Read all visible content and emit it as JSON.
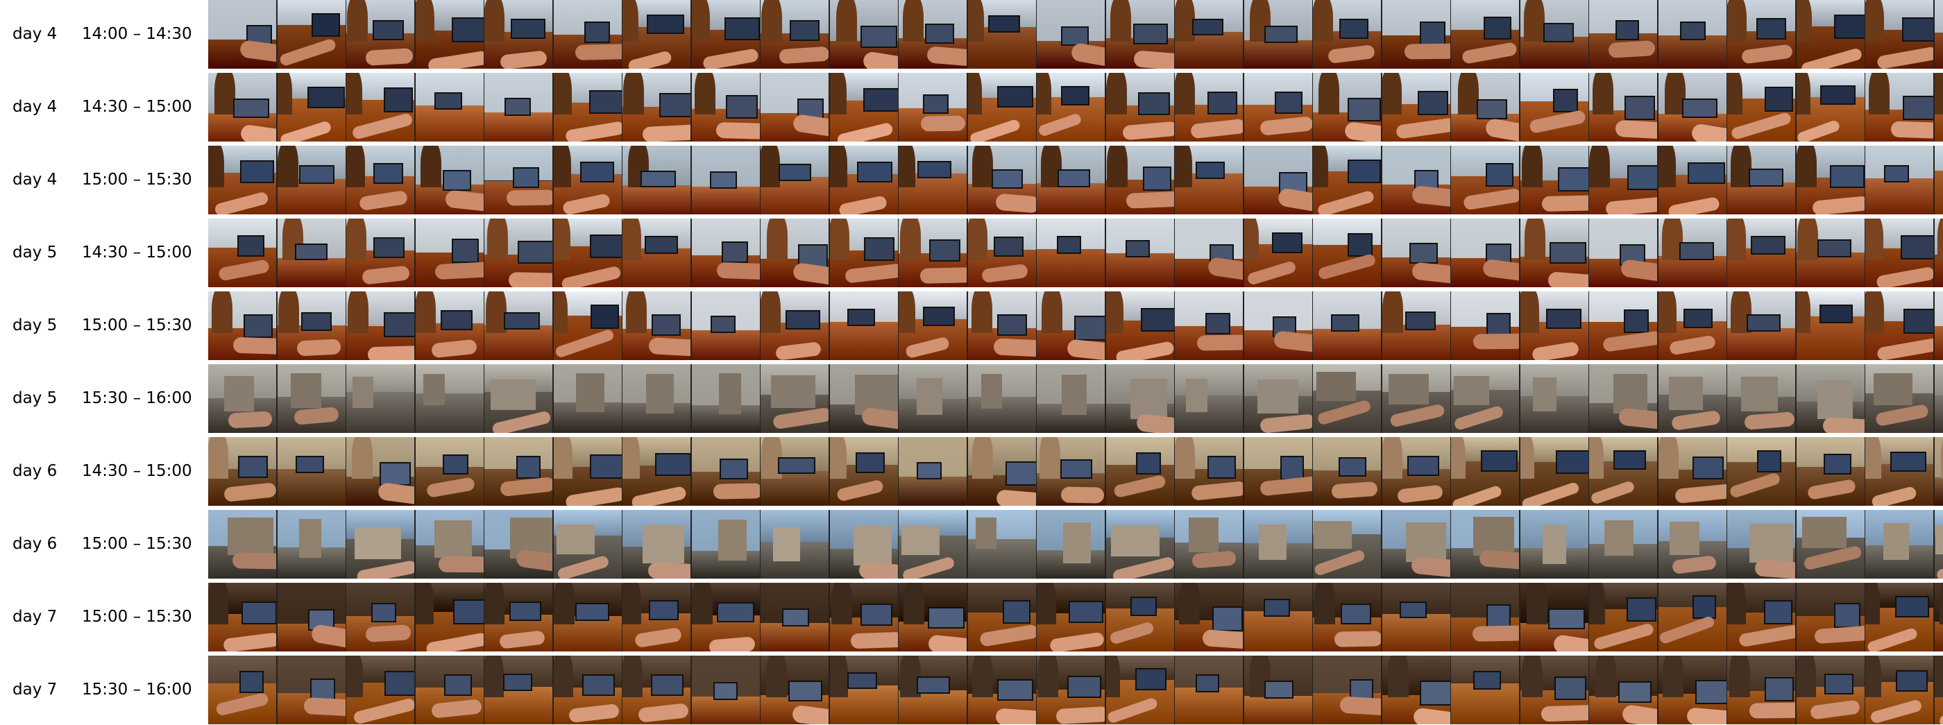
{
  "rows": [
    {
      "day": "day 4",
      "time": "14:00 – 14:30",
      "palette": {
        "sky": "#cfd8e0",
        "ground": "#8a4a20",
        "arch": "#6b3a18",
        "screen": "#1d2a44",
        "arm": "#c98a6a"
      },
      "scene": "indoor"
    },
    {
      "day": "day 4",
      "time": "14:30 – 15:00",
      "palette": {
        "sky": "#d9e2ea",
        "ground": "#b0602a",
        "arch": "#5a3216",
        "screen": "#24304a",
        "arm": "#d69878"
      },
      "scene": "indoor"
    },
    {
      "day": "day 4",
      "time": "15:00 – 15:30",
      "palette": {
        "sky": "#c8d4de",
        "ground": "#a5582a",
        "arch": "#4e2c14",
        "screen": "#2a3d5e",
        "arm": "#d09070"
      },
      "scene": "indoor"
    },
    {
      "day": "day 5",
      "time": "14:30 – 15:00",
      "palette": {
        "sky": "#dde4ea",
        "ground": "#9c4e1e",
        "arch": "#7a4420",
        "screen": "#233048",
        "arm": "#c98666"
      },
      "scene": "indoor"
    },
    {
      "day": "day 5",
      "time": "15:00 – 15:30",
      "palette": {
        "sky": "#e2e8ee",
        "ground": "#a35424",
        "arch": "#6e3c1a",
        "screen": "#1f2b44",
        "arm": "#cf8e6e"
      },
      "scene": "indoor"
    },
    {
      "day": "day 5",
      "time": "15:30 – 16:00",
      "palette": {
        "sky": "#b9b6ae",
        "ground": "#6c665e",
        "arch": "#8a7f70",
        "screen": "#2c3440",
        "arm": "#b88a70"
      },
      "scene": "mixed"
    },
    {
      "day": "day 6",
      "time": "14:30 – 15:00",
      "palette": {
        "sky": "#c9b89a",
        "ground": "#7a5432",
        "arch": "#a08060",
        "screen": "#2a3a5a",
        "arm": "#c8906c"
      },
      "scene": "library"
    },
    {
      "day": "day 6",
      "time": "15:00 – 15:30",
      "palette": {
        "sky": "#a7c2dc",
        "ground": "#6f6a62",
        "arch": "#9a8c78",
        "screen": "#3a3a40",
        "arm": "#b98a72"
      },
      "scene": "outdoor"
    },
    {
      "day": "day 7",
      "time": "15:00 – 15:30",
      "palette": {
        "sky": "#5a4636",
        "ground": "#a86028",
        "arch": "#3c2a1c",
        "screen": "#2b3c5c",
        "arm": "#cf9272"
      },
      "scene": "indoor"
    },
    {
      "day": "day 7",
      "time": "15:30 – 16:00",
      "palette": {
        "sky": "#6a5646",
        "ground": "#b0682c",
        "arch": "#443022",
        "screen": "#2d3d5a",
        "arm": "#d29676"
      },
      "scene": "indoor"
    }
  ]
}
